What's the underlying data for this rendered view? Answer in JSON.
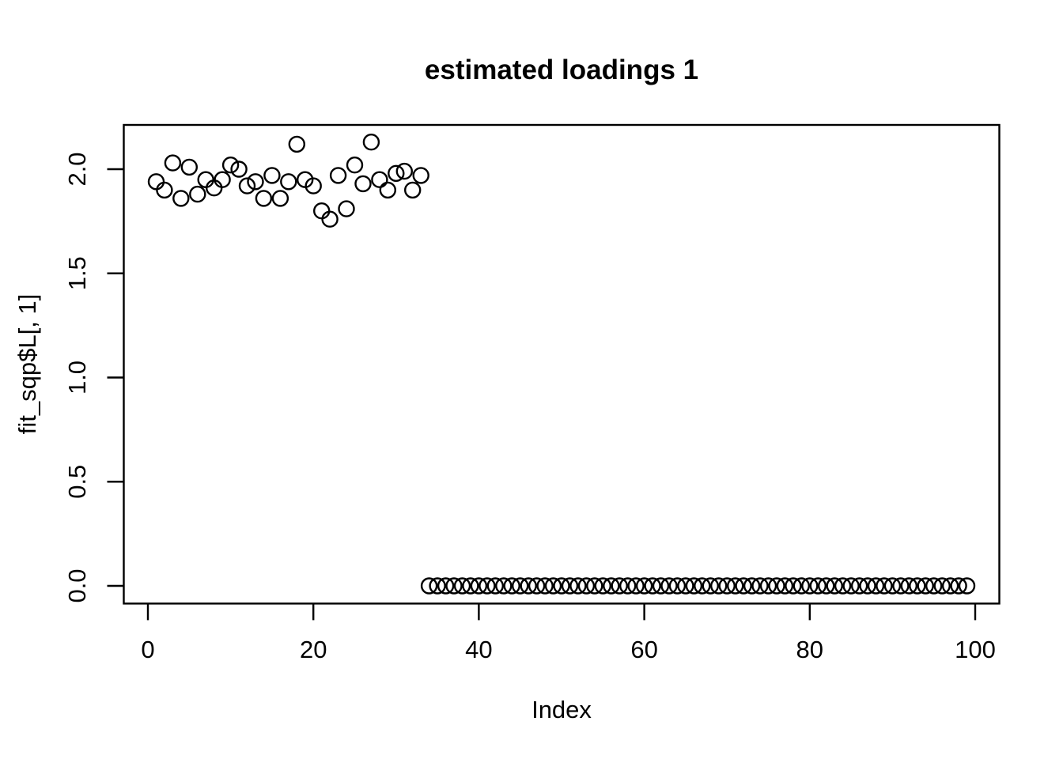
{
  "chart_data": {
    "type": "scatter",
    "title": "estimated loadings 1",
    "xlabel": "Index",
    "ylabel": "fit_sqp$L[, 1]",
    "marker": "open-circle",
    "marker_color": "#000000",
    "background_color": "#ffffff",
    "grid": false,
    "legend": false,
    "xlim": [
      -2.92,
      102.92
    ],
    "ylim": [
      -0.085,
      2.212
    ],
    "xticks": [
      0,
      20,
      40,
      60,
      80,
      100
    ],
    "xtick_labels": [
      "0",
      "20",
      "40",
      "60",
      "80",
      "100"
    ],
    "yticks": [
      0.0,
      0.5,
      1.0,
      1.5,
      2.0
    ],
    "ytick_labels": [
      "0.0",
      "0.5",
      "1.0",
      "1.5",
      "2.0"
    ],
    "x": [
      1,
      2,
      3,
      4,
      5,
      6,
      7,
      8,
      9,
      10,
      11,
      12,
      13,
      14,
      15,
      16,
      17,
      18,
      19,
      20,
      21,
      22,
      23,
      24,
      25,
      26,
      27,
      28,
      29,
      30,
      31,
      32,
      33,
      34,
      35,
      36,
      37,
      38,
      39,
      40,
      41,
      42,
      43,
      44,
      45,
      46,
      47,
      48,
      49,
      50,
      51,
      52,
      53,
      54,
      55,
      56,
      57,
      58,
      59,
      60,
      61,
      62,
      63,
      64,
      65,
      66,
      67,
      68,
      69,
      70,
      71,
      72,
      73,
      74,
      75,
      76,
      77,
      78,
      79,
      80,
      81,
      82,
      83,
      84,
      85,
      86,
      87,
      88,
      89,
      90,
      91,
      92,
      93,
      94,
      95,
      96,
      97,
      98,
      99
    ],
    "y": [
      1.94,
      1.9,
      2.03,
      1.86,
      2.01,
      1.88,
      1.95,
      1.91,
      1.95,
      2.02,
      2.0,
      1.92,
      1.94,
      1.86,
      1.97,
      1.86,
      1.94,
      2.12,
      1.95,
      1.92,
      1.8,
      1.76,
      1.97,
      1.81,
      2.02,
      1.93,
      2.13,
      1.95,
      1.9,
      1.98,
      1.99,
      1.9,
      1.97,
      0,
      0,
      0,
      0,
      0,
      0,
      0,
      0,
      0,
      0,
      0,
      0,
      0,
      0,
      0,
      0,
      0,
      0,
      0,
      0,
      0,
      0,
      0,
      0,
      0,
      0,
      0,
      0,
      0,
      0,
      0,
      0,
      0,
      0,
      0,
      0,
      0,
      0,
      0,
      0,
      0,
      0,
      0,
      0,
      0,
      0,
      0,
      0,
      0,
      0,
      0,
      0,
      0,
      0,
      0,
      0,
      0,
      0,
      0,
      0,
      0,
      0,
      0,
      0,
      0,
      0
    ]
  }
}
